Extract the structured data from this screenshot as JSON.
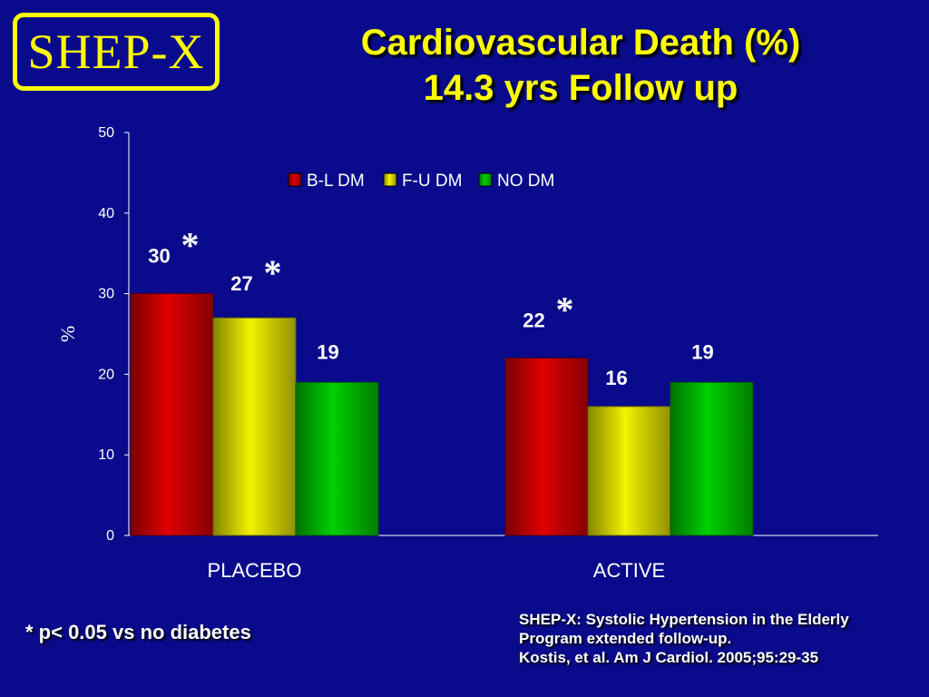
{
  "logo": {
    "text": "SHEP-X"
  },
  "title": {
    "line1": "Cardiovascular Death (%)",
    "line2": "14.3 yrs Follow up"
  },
  "footnote": "* p< 0.05 vs no diabetes",
  "citation": {
    "line1": "SHEP-X: Systolic Hypertension in the Elderly",
    "line2": "Program extended follow-up.",
    "line3": "Kostis, et al.  Am J Cardiol. 2005;95:29-35"
  },
  "colors": {
    "background": "#0A0A8C",
    "title": "#FFFF00",
    "series": [
      "#E00000",
      "#F2F200",
      "#00D000"
    ]
  },
  "chart_data": {
    "type": "bar",
    "categories": [
      "PLACEBO",
      "ACTIVE"
    ],
    "ylabel": "%",
    "xlabel": "",
    "ylim": [
      0,
      50
    ],
    "yticks": [
      0,
      10,
      20,
      30,
      40,
      50
    ],
    "grid": false,
    "legend_position": "top",
    "series": [
      {
        "name": "B-L DM",
        "values": [
          30,
          22
        ],
        "significant": [
          true,
          true
        ]
      },
      {
        "name": "F-U DM",
        "values": [
          27,
          16
        ],
        "significant": [
          true,
          false
        ]
      },
      {
        "name": "NO DM",
        "values": [
          19,
          19
        ],
        "significant": [
          false,
          false
        ]
      }
    ],
    "significance_marker": "*"
  }
}
